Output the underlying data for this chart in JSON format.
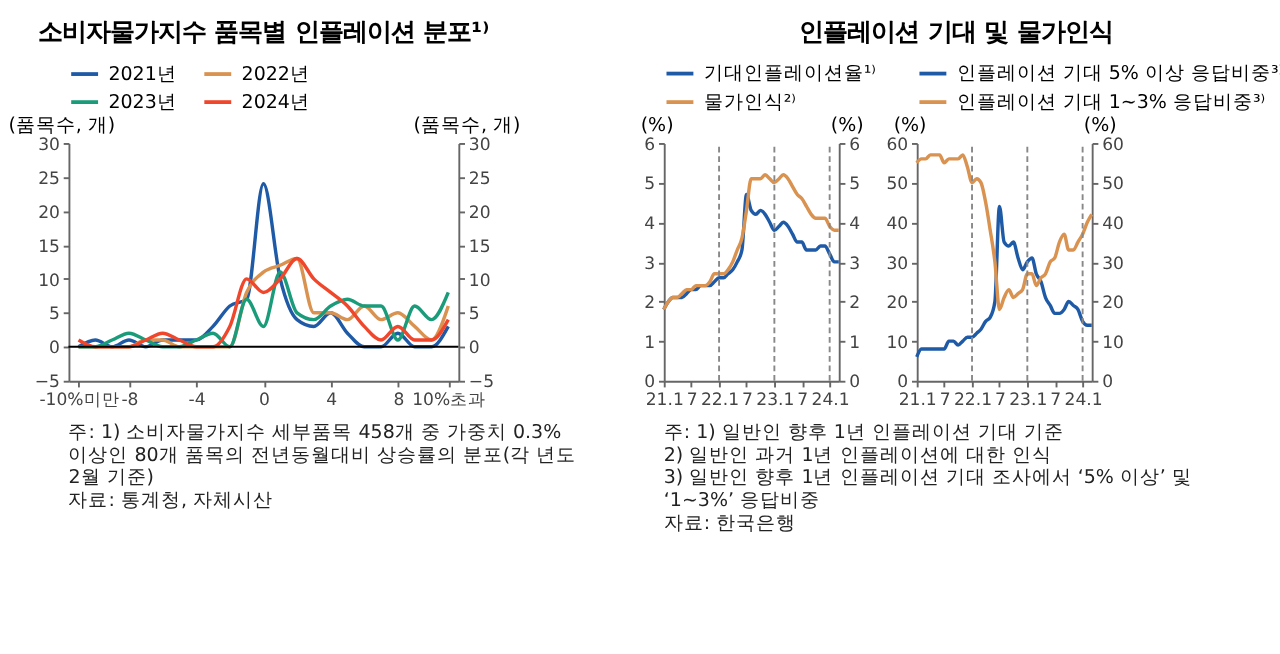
{
  "chart_data": [
    {
      "type": "line",
      "title": "소비자물가지수 품목별 인플레이션 분포¹⁾",
      "ylabel": "(품목수, 개)",
      "y2label": "(품목수, 개)",
      "categories": [
        "-10%미만",
        null,
        null,
        "-8",
        null,
        null,
        null,
        "-4",
        null,
        null,
        null,
        "0",
        null,
        null,
        null,
        "4",
        null,
        null,
        null,
        "8",
        null,
        null,
        "10%초과"
      ],
      "ylim": [
        -5,
        30
      ],
      "yticks": [
        -5,
        0,
        5,
        10,
        15,
        20,
        25,
        30
      ],
      "y2lim": [
        -5,
        30
      ],
      "y2ticks": [
        -5,
        0,
        5,
        10,
        15,
        20,
        25,
        30
      ],
      "series": [
        {
          "name": "2021년",
          "color": "#1f5aa6",
          "values": [
            0,
            1,
            0,
            1,
            0,
            1,
            1,
            1,
            3,
            6,
            7,
            24,
            10,
            4,
            3,
            5,
            2,
            0,
            0,
            2,
            0,
            0,
            3
          ]
        },
        {
          "name": "2022년",
          "color": "#d9924f",
          "values": [
            0,
            0,
            0,
            0,
            1,
            1,
            0,
            0,
            0,
            0,
            8,
            11,
            12,
            13,
            5,
            5,
            4,
            6,
            4,
            5,
            3,
            1,
            6
          ]
        },
        {
          "name": "2023년",
          "color": "#1a9c7a",
          "values": [
            0,
            0,
            1,
            2,
            1,
            0,
            0,
            1,
            2,
            0,
            7,
            3,
            11,
            5,
            4,
            6,
            7,
            6,
            6,
            1,
            6,
            4,
            8
          ]
        },
        {
          "name": "2024년",
          "color": "#f0462b",
          "values": [
            1,
            0,
            0,
            0,
            1,
            2,
            1,
            0,
            0,
            3,
            10,
            8,
            10,
            13,
            10,
            8,
            6,
            3,
            1,
            3,
            1,
            1,
            4
          ]
        }
      ],
      "ref_lines": [
        {
          "axis": "y",
          "value": 0,
          "color": "#000000",
          "line_style": "solid"
        }
      ],
      "legend": "top",
      "grid": false,
      "annotations": [
        "주: 1) 소비자물가지수 세부품목 458개 중 가중치 0.3% 이상인 80개 품목의 전년동월대비 상승률의 분포(각 년도 2월 기준)",
        "자료: 통계청, 자체시산"
      ]
    },
    {
      "type": "line",
      "title": "인플레이션 기대 및 물가인식",
      "ylabel": "(%)",
      "y2label": "(%)",
      "x": [
        "2021-01",
        "2021-02",
        "2021-03",
        "2021-04",
        "2021-05",
        "2021-06",
        "2021-07",
        "2021-08",
        "2021-09",
        "2021-10",
        "2021-11",
        "2021-12",
        "2022-01",
        "2022-02",
        "2022-03",
        "2022-04",
        "2022-05",
        "2022-06",
        "2022-07",
        "2022-08",
        "2022-09",
        "2022-10",
        "2022-11",
        "2022-12",
        "2023-01",
        "2023-02",
        "2023-03",
        "2023-04",
        "2023-05",
        "2023-06",
        "2023-07",
        "2023-08",
        "2023-09",
        "2023-10",
        "2023-11",
        "2023-12",
        "2024-01",
        "2024-02",
        "2024-03"
      ],
      "xlim": [
        "2021-01",
        "2024-03"
      ],
      "xticks": [
        {
          "value": "2021-01",
          "label": "21.1"
        },
        {
          "value": "2021-07",
          "label": "7"
        },
        {
          "value": "2022-01",
          "label": "22.1"
        },
        {
          "value": "2022-07",
          "label": "7"
        },
        {
          "value": "2023-01",
          "label": "23.1"
        },
        {
          "value": "2023-07",
          "label": "7"
        },
        {
          "value": "2024-01",
          "label": "24.1"
        }
      ],
      "ylim": [
        0,
        6
      ],
      "yticks": [
        0,
        1,
        2,
        3,
        4,
        5,
        6
      ],
      "y2lim": [
        0,
        6
      ],
      "y2ticks": [
        0,
        1,
        2,
        3,
        4,
        5,
        6
      ],
      "series": [
        {
          "name": "기대인플레이션율¹⁾",
          "color": "#1f5aa6",
          "values": [
            1.8,
            2.0,
            2.1,
            2.1,
            2.1,
            2.2,
            2.3,
            2.3,
            2.4,
            2.4,
            2.4,
            2.5,
            2.6,
            2.6,
            2.7,
            2.8,
            3.0,
            3.3,
            4.7,
            4.3,
            4.2,
            4.3,
            4.2,
            4.0,
            3.8,
            3.9,
            4.0,
            3.9,
            3.7,
            3.5,
            3.5,
            3.3,
            3.3,
            3.3,
            3.4,
            3.4,
            3.2,
            3.0,
            3.0
          ]
        },
        {
          "name": "물가인식²⁾",
          "color": "#d9924f",
          "values": [
            1.8,
            2.0,
            2.1,
            2.1,
            2.2,
            2.3,
            2.3,
            2.4,
            2.4,
            2.4,
            2.5,
            2.7,
            2.7,
            2.7,
            2.8,
            3.0,
            3.3,
            3.6,
            4.3,
            5.1,
            5.1,
            5.1,
            5.2,
            5.1,
            5.0,
            5.1,
            5.2,
            5.1,
            4.9,
            4.7,
            4.6,
            4.4,
            4.2,
            4.1,
            4.1,
            4.1,
            3.9,
            3.8,
            3.8
          ]
        }
      ],
      "ref_lines": [
        {
          "axis": "x",
          "value": "2022-01",
          "color": "#888888",
          "line_style": "dashed"
        },
        {
          "axis": "x",
          "value": "2023-01",
          "color": "#888888",
          "line_style": "dashed"
        },
        {
          "axis": "x",
          "value": "2024-01",
          "color": "#888888",
          "line_style": "dashed"
        }
      ],
      "legend": "top",
      "grid": false,
      "annotations": [
        "주: 1) 일반인 향후 1년 인플레이션 기대 기준",
        "2) 일반인 과거 1년 인플레이션에 대한 인식",
        "3) 일반인 향후 1년 인플레이션 기대 조사에서 ‘5% 이상’ 및 ‘1~3%’ 응답비중",
        "자료: 한국은행"
      ]
    },
    {
      "type": "line",
      "ylabel": "(%)",
      "y2label": "(%)",
      "x": [
        "2021-01",
        "2021-02",
        "2021-03",
        "2021-04",
        "2021-05",
        "2021-06",
        "2021-07",
        "2021-08",
        "2021-09",
        "2021-10",
        "2021-11",
        "2021-12",
        "2022-01",
        "2022-02",
        "2022-03",
        "2022-04",
        "2022-05",
        "2022-06",
        "2022-07",
        "2022-08",
        "2022-09",
        "2022-10",
        "2022-11",
        "2022-12",
        "2023-01",
        "2023-02",
        "2023-03",
        "2023-04",
        "2023-05",
        "2023-06",
        "2023-07",
        "2023-08",
        "2023-09",
        "2023-10",
        "2023-11",
        "2023-12",
        "2024-01",
        "2024-02",
        "2024-03"
      ],
      "xlim": [
        "2021-01",
        "2024-03"
      ],
      "xticks": [
        {
          "value": "2021-01",
          "label": "21.1"
        },
        {
          "value": "2021-07",
          "label": "7"
        },
        {
          "value": "2022-01",
          "label": "22.1"
        },
        {
          "value": "2022-07",
          "label": "7"
        },
        {
          "value": "2023-01",
          "label": "23.1"
        },
        {
          "value": "2023-07",
          "label": "7"
        },
        {
          "value": "2024-01",
          "label": "24.1"
        }
      ],
      "ylim": [
        0,
        60
      ],
      "yticks": [
        0,
        10,
        20,
        30,
        40,
        50,
        60
      ],
      "y2lim": [
        0,
        60
      ],
      "y2ticks": [
        0,
        10,
        20,
        30,
        40,
        50,
        60
      ],
      "series": [
        {
          "name": "인플레이션 기대 5% 이상 응답비중³⁾",
          "color": "#1f5aa6",
          "values": [
            6,
            8,
            8,
            8,
            8,
            8,
            8,
            10,
            10,
            9,
            10,
            11,
            11,
            12,
            13,
            15,
            16,
            20,
            44,
            35,
            34,
            35,
            31,
            28,
            30,
            31,
            27,
            25,
            21,
            19,
            17,
            17,
            18,
            20,
            19,
            18,
            15,
            14,
            14
          ]
        },
        {
          "name": "인플레이션 기대 1~3% 응답비중³⁾",
          "color": "#d9924f",
          "values": [
            55,
            56,
            56,
            57,
            57,
            57,
            55,
            56,
            56,
            56,
            57,
            54,
            50,
            51,
            50,
            45,
            38,
            30,
            18,
            21,
            23,
            21,
            22,
            23,
            27,
            27,
            24,
            26,
            27,
            30,
            31,
            35,
            37,
            33,
            33,
            35,
            37,
            40,
            42
          ]
        }
      ],
      "ref_lines": [
        {
          "axis": "x",
          "value": "2022-01",
          "color": "#888888",
          "line_style": "dashed"
        },
        {
          "axis": "x",
          "value": "2023-01",
          "color": "#888888",
          "line_style": "dashed"
        },
        {
          "axis": "x",
          "value": "2024-01",
          "color": "#888888",
          "line_style": "dashed"
        }
      ],
      "legend": "top",
      "grid": false
    }
  ]
}
